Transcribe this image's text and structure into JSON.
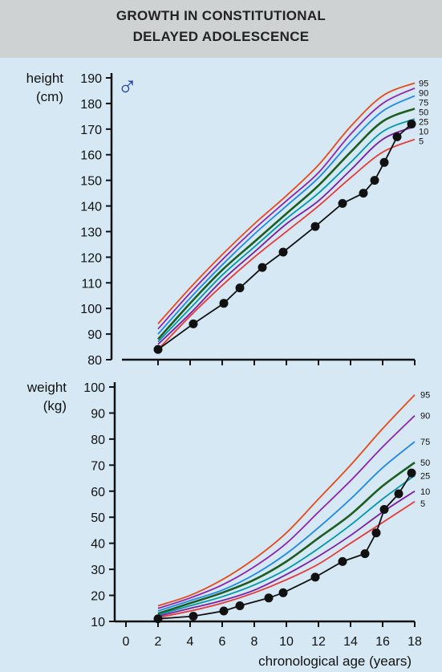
{
  "header": {
    "title_line1": "GROWTH IN CONSTITUTIONAL",
    "title_line2": "DELAYED ADOLESCENCE",
    "sex_symbol": "♂"
  },
  "colors": {
    "background": "#d6e8f4",
    "title_band": "#cfd2d3",
    "axis": "#111111",
    "male_symbol": "#1c3fa8",
    "patient": "#111111",
    "percentile_colors": {
      "95": "#e64a19",
      "90": "#8e24aa",
      "75": "#1e88e5",
      "50": "#1b5e20",
      "25": "#0097a7",
      "10": "#7b1fa2",
      "5": "#e53935"
    }
  },
  "chart_data": [
    {
      "type": "line",
      "ylabel_line1": "height",
      "ylabel_line2": "(cm)",
      "ylim": [
        80,
        190
      ],
      "yticks": [
        80,
        90,
        100,
        110,
        120,
        130,
        140,
        150,
        160,
        170,
        180,
        190
      ],
      "xlim": [
        0,
        18
      ],
      "xticks": [
        2,
        4,
        6,
        8,
        10,
        12,
        14,
        16,
        18
      ],
      "x": [
        2,
        4,
        6,
        8,
        10,
        12,
        14,
        16,
        18
      ],
      "series": [
        {
          "name": "95",
          "values": [
            94,
            108,
            121,
            133,
            144,
            156,
            171,
            183,
            188
          ]
        },
        {
          "name": "90",
          "values": [
            92,
            106,
            119,
            131,
            142,
            153,
            168,
            180,
            186
          ]
        },
        {
          "name": "75",
          "values": [
            90,
            104,
            117,
            129,
            140,
            151,
            165,
            177,
            183
          ]
        },
        {
          "name": "50",
          "values": [
            88,
            102,
            115,
            126,
            137,
            148,
            161,
            173,
            178
          ]
        },
        {
          "name": "25",
          "values": [
            87,
            100,
            113,
            124,
            135,
            145,
            157,
            169,
            174
          ]
        },
        {
          "name": "10",
          "values": [
            86,
            98,
            111,
            122,
            133,
            142,
            154,
            166,
            171
          ]
        },
        {
          "name": "5",
          "values": [
            84,
            97,
            109,
            120,
            130,
            140,
            151,
            161,
            166
          ]
        }
      ],
      "patient": {
        "x": [
          2,
          4.2,
          6.1,
          7.1,
          8.5,
          9.8,
          11.8,
          13.5,
          14.8,
          15.5,
          16.1,
          16.9,
          17.8
        ],
        "y": [
          84,
          94,
          102,
          108,
          116,
          122,
          132,
          141,
          145,
          150,
          157,
          167,
          172
        ]
      }
    },
    {
      "type": "line",
      "ylabel_line1": "weight",
      "ylabel_line2": "(kg)",
      "ylim": [
        10,
        100
      ],
      "yticks": [
        10,
        20,
        30,
        40,
        50,
        60,
        70,
        80,
        90,
        100
      ],
      "xlim": [
        0,
        18
      ],
      "xticks": [
        0,
        2,
        4,
        6,
        8,
        10,
        12,
        14,
        16,
        18
      ],
      "xlabel": "chronological age (years)",
      "x": [
        2,
        4,
        6,
        8,
        10,
        12,
        14,
        16,
        18
      ],
      "series": [
        {
          "name": "95",
          "values": [
            16,
            20,
            26,
            34,
            44,
            57,
            70,
            84,
            97
          ]
        },
        {
          "name": "90",
          "values": [
            15,
            19,
            24,
            31,
            40,
            52,
            64,
            77,
            89
          ]
        },
        {
          "name": "75",
          "values": [
            14,
            18,
            22,
            28,
            36,
            46,
            57,
            69,
            79
          ]
        },
        {
          "name": "50",
          "values": [
            13,
            17,
            21,
            26,
            33,
            42,
            51,
            62,
            71
          ]
        },
        {
          "name": "25",
          "values": [
            12.5,
            16,
            19.5,
            24,
            30,
            38,
            47,
            57,
            66
          ]
        },
        {
          "name": "10",
          "values": [
            12,
            15,
            18,
            22,
            28,
            35,
            43,
            52,
            60
          ]
        },
        {
          "name": "5",
          "values": [
            11.5,
            14,
            17,
            21,
            26,
            32,
            40,
            48,
            56
          ]
        }
      ],
      "patient": {
        "x": [
          2,
          4.2,
          6.1,
          7.1,
          8.9,
          9.8,
          11.8,
          13.5,
          14.9,
          15.6,
          16.1,
          17.0,
          17.8
        ],
        "y": [
          11,
          12,
          14,
          16,
          19,
          21,
          27,
          33,
          36,
          44,
          53,
          59,
          67
        ]
      }
    }
  ]
}
